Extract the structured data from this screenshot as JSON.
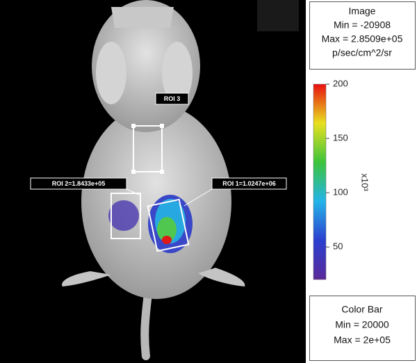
{
  "image_panel": {
    "rois": [
      {
        "label": "ROI 3"
      },
      {
        "label": "ROI 2=1.8433e+05"
      },
      {
        "label": "ROI 1=1.0247e+06"
      }
    ]
  },
  "image_info": {
    "title": "Image",
    "min": "Min = -20908",
    "max": "Max = 2.8509e+05",
    "units": "p/sec/cm^2/sr"
  },
  "colorbar": {
    "lim": [
      20,
      200
    ],
    "ticks": [
      50,
      100,
      150,
      200
    ],
    "label": "x10³"
  },
  "colorbar_info": {
    "title": "Color Bar",
    "min": "Min = 20000",
    "max": "Max = 2e+05"
  }
}
